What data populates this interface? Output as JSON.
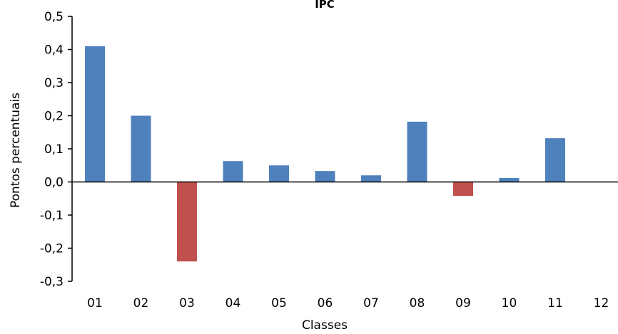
{
  "chart_data": {
    "type": "bar",
    "title": "IPC",
    "xlabel": "Classes",
    "ylabel": "Pontos percentuais",
    "categories": [
      "01",
      "02",
      "03",
      "04",
      "05",
      "06",
      "07",
      "08",
      "09",
      "10",
      "11",
      "12"
    ],
    "values": [
      0.41,
      0.2,
      -0.24,
      0.063,
      0.05,
      0.033,
      0.02,
      0.182,
      -0.042,
      0.012,
      0.132,
      0.0
    ],
    "ylim": [
      -0.3,
      0.5
    ],
    "yticks": [
      0.5,
      0.4,
      0.3,
      0.2,
      0.1,
      0.0,
      -0.1,
      -0.2,
      -0.3
    ],
    "ytick_labels": [
      "0,5",
      "0,4",
      "0,3",
      "0,2",
      "0,1",
      "0,0",
      "-0,1",
      "-0,2",
      "-0,3"
    ],
    "grid": false,
    "legend": "none",
    "colors": {
      "positive": "#4F81BD",
      "negative": "#C0504D",
      "axis": "#000000"
    }
  }
}
